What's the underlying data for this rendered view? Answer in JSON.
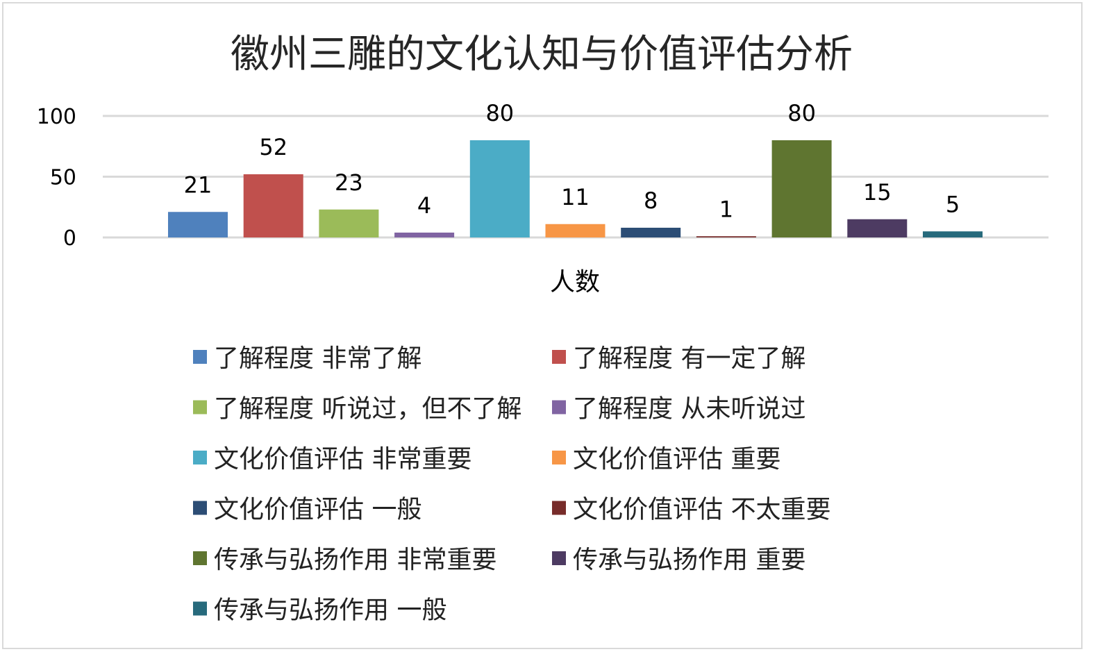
{
  "chart_data": {
    "type": "bar",
    "title": "徽州三雕的文化认知与价值评估分析",
    "xlabel": "人数",
    "ylabel": "",
    "ylim": [
      0,
      100
    ],
    "yticks": [
      0,
      50,
      100
    ],
    "grid": true,
    "legend_position": "bottom",
    "categories": [
      "人数"
    ],
    "series": [
      {
        "name": "了解程度 非常了解",
        "values": [
          21
        ],
        "color": "#4f81bd"
      },
      {
        "name": "了解程度 有一定了解",
        "values": [
          52
        ],
        "color": "#c0504d"
      },
      {
        "name": "了解程度 听说过，但不了解",
        "values": [
          23
        ],
        "color": "#9bbb59"
      },
      {
        "name": "了解程度 从未听说过",
        "values": [
          4
        ],
        "color": "#8064a2"
      },
      {
        "name": "文化价值评估 非常重要",
        "values": [
          80
        ],
        "color": "#4bacc6"
      },
      {
        "name": "文化价值评估 重要",
        "values": [
          11
        ],
        "color": "#f79646"
      },
      {
        "name": "文化价值评估 一般",
        "values": [
          8
        ],
        "color": "#2c4d75"
      },
      {
        "name": "文化价值评估 不太重要",
        "values": [
          1
        ],
        "color": "#772c2a"
      },
      {
        "name": "传承与弘扬作用 非常重要",
        "values": [
          80
        ],
        "color": "#5f7530"
      },
      {
        "name": "传承与弘扬作用 重要",
        "values": [
          15
        ],
        "color": "#4d3b62"
      },
      {
        "name": "传承与弘扬作用 一般",
        "values": [
          5
        ],
        "color": "#276a7c"
      }
    ]
  }
}
